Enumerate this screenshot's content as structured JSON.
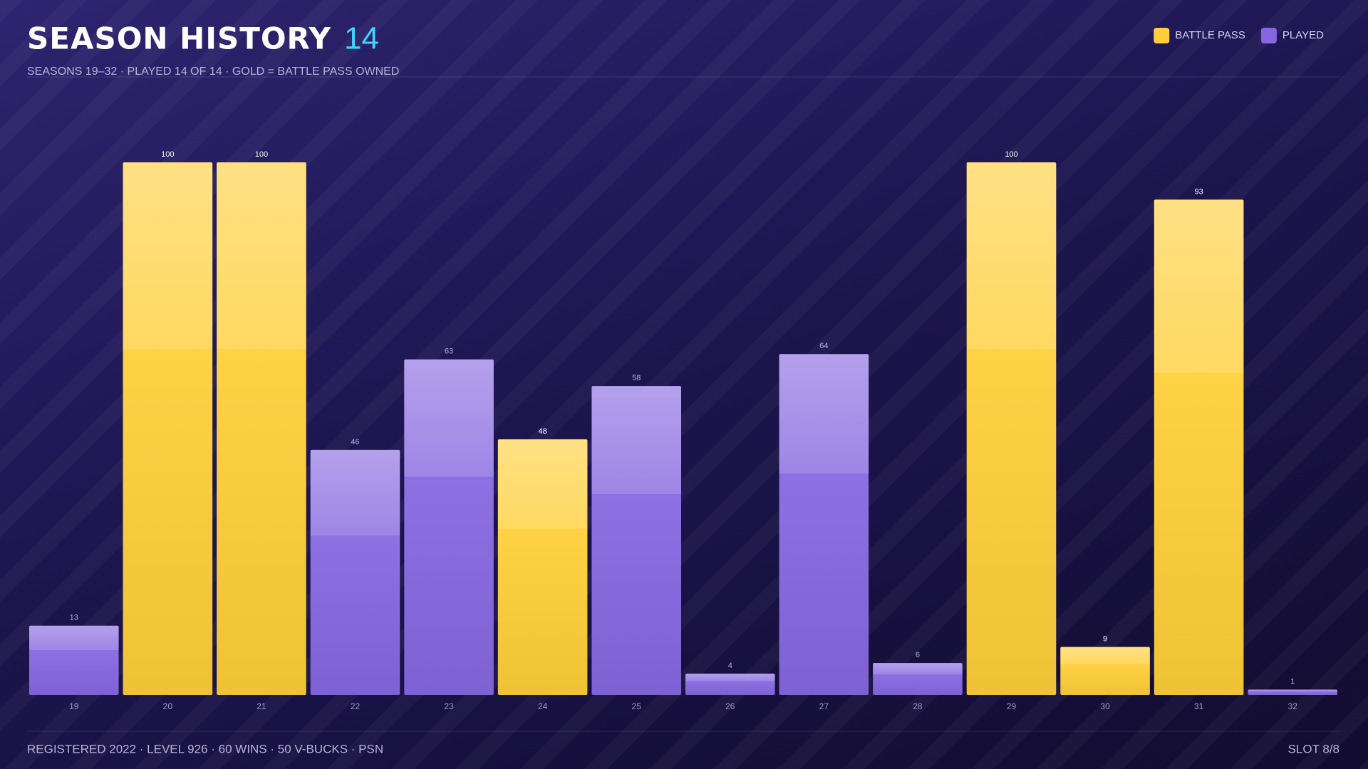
{
  "chart_data": {
    "type": "bar",
    "title": "SEASON HISTORY",
    "title_count": "14",
    "subtitle": "SEASONS 19–32 · PLAYED 14 OF 14 · GOLD = BATTLE PASS OWNED",
    "categories": [
      "19",
      "20",
      "21",
      "22",
      "23",
      "24",
      "25",
      "26",
      "27",
      "28",
      "29",
      "30",
      "31",
      "32"
    ],
    "series": [
      {
        "name": "BATTLE PASS",
        "color": "#ffcf3a",
        "values": [
          null,
          100,
          100,
          null,
          null,
          48,
          null,
          null,
          null,
          null,
          100,
          9,
          93,
          null
        ]
      },
      {
        "name": "PLAYED",
        "color": "#8667e0",
        "values": [
          13,
          null,
          null,
          46,
          63,
          null,
          58,
          4,
          64,
          6,
          null,
          null,
          null,
          1
        ]
      }
    ],
    "ylim": [
      0,
      100
    ],
    "legend": "top-right"
  },
  "footer": {
    "left": "REGISTERED 2022 · LEVEL 926 · 60 WINS · 50 V-BUCKS · PSN",
    "right": "SLOT 8/8"
  }
}
